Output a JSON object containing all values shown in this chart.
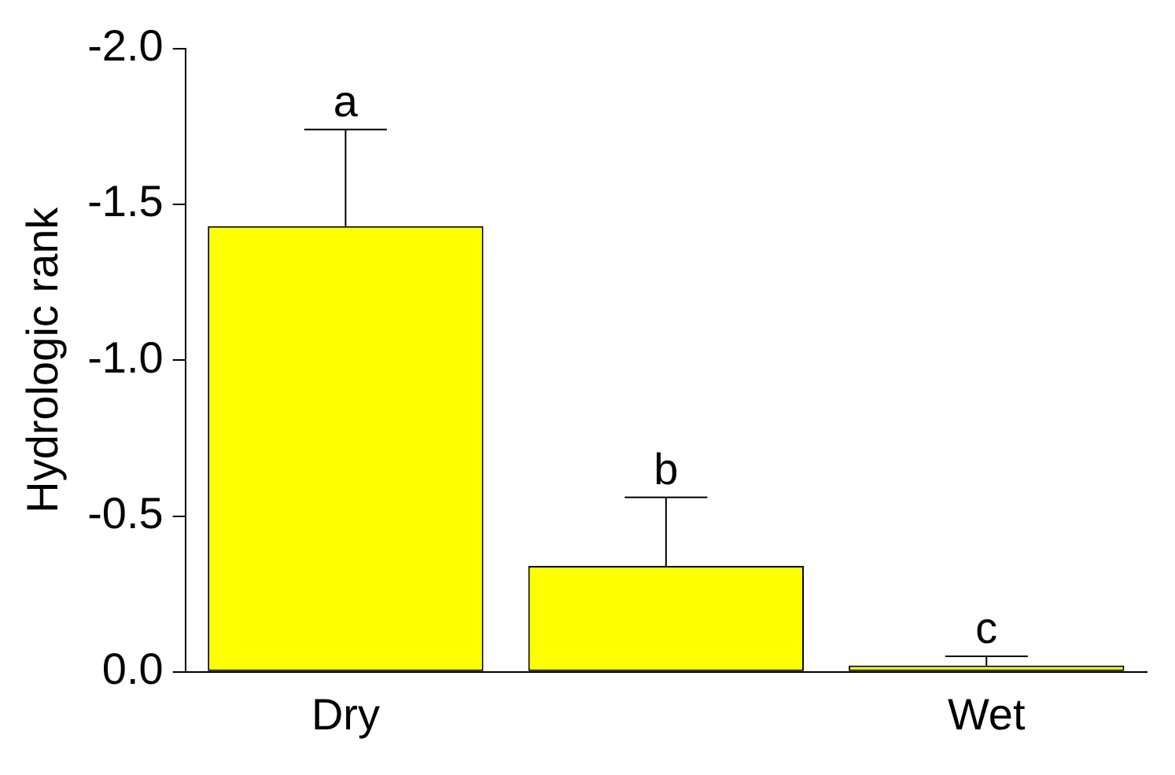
{
  "chart_data": {
    "type": "bar",
    "ylabel": "Hydrologic rank",
    "categories": [
      "Dry",
      null,
      "Wet"
    ],
    "values": [
      -1.43,
      -0.34,
      -0.02
    ],
    "color": "#ffff00",
    "errors": [
      [
        -1.74,
        -1.43
      ],
      [
        -0.56,
        -0.34
      ],
      [
        -0.05,
        -0.02
      ]
    ],
    "annotations": [
      "a",
      "b",
      "c"
    ],
    "ylim": [
      0,
      -2.0
    ],
    "yticks": [
      {
        "value": 0,
        "label": "0.0"
      },
      {
        "value": -0.5,
        "label": "-0.5"
      },
      {
        "value": -1.0,
        "label": "-1.0"
      },
      {
        "value": -1.5,
        "label": "-1.5"
      },
      {
        "value": -2.0,
        "label": "-2.0"
      }
    ],
    "grid": false,
    "legend": false
  }
}
